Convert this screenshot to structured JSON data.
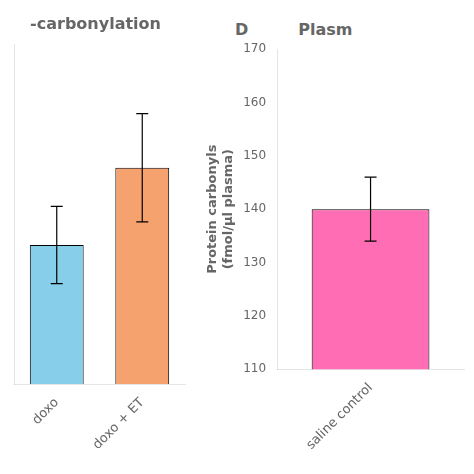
{
  "chart_data": [
    {
      "type": "bar",
      "title": "-carbonylation",
      "categories": [
        "doxo",
        "doxo + ET"
      ],
      "values": [
        159,
        164
      ],
      "errors": [
        2.5,
        3.5
      ],
      "colors": [
        "#87CEEB",
        "#F5A26F"
      ],
      "ylim": [
        150,
        172
      ],
      "tick_labels": "x",
      "grid": false
    },
    {
      "type": "bar",
      "categories": [
        "saline control"
      ],
      "values": [
        140
      ],
      "errors": [
        6
      ],
      "colors": [
        "#FF6EB4"
      ],
      "ylim": [
        110,
        170
      ],
      "yticks": [
        110,
        120,
        130,
        140,
        150,
        160,
        170
      ],
      "ylabel": "Protein carbonyls\n(fmol/μl plasma)",
      "annotations": [
        "D",
        "Plasm"
      ],
      "grid": false
    }
  ]
}
